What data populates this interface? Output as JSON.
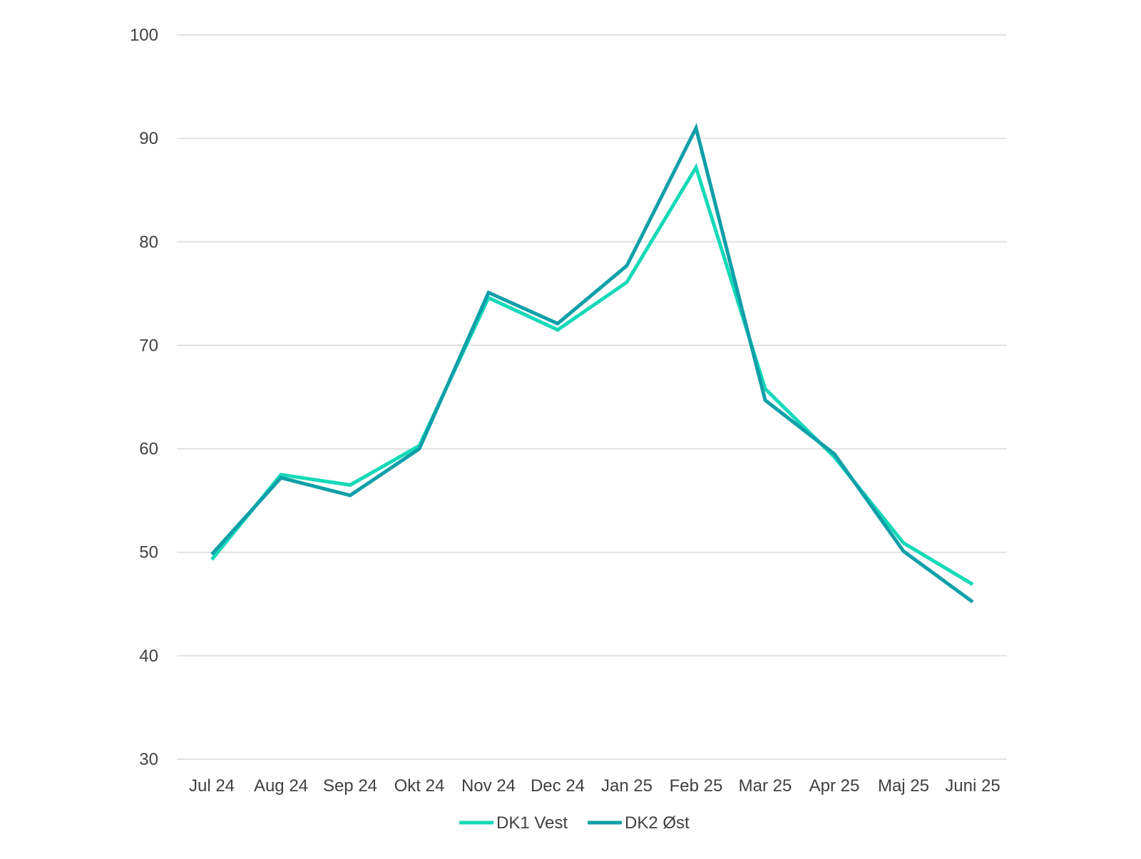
{
  "chart_data": {
    "type": "line",
    "title": "",
    "xlabel": "",
    "ylabel": "",
    "categories": [
      "Jul 24",
      "Aug 24",
      "Sep 24",
      "Okt 24",
      "Nov 24",
      "Dec 24",
      "Jan 25",
      "Feb 25",
      "Mar 25",
      "Apr 25",
      "Maj 25",
      "Juni 25"
    ],
    "ylim": [
      30,
      100
    ],
    "yticks": [
      30,
      40,
      50,
      60,
      70,
      80,
      90,
      100
    ],
    "grid": true,
    "legend_position": "bottom",
    "series": [
      {
        "name": "DK1 Vest",
        "color": "#14d9b8",
        "values": [
          49.3,
          57.5,
          56.5,
          60.3,
          74.6,
          71.5,
          76.1,
          87.2,
          65.8,
          59.2,
          50.9,
          46.9
        ]
      },
      {
        "name": "DK2 Øst",
        "color": "#0fa0a8",
        "values": [
          49.8,
          57.2,
          55.5,
          60.0,
          75.1,
          72.1,
          77.7,
          91.0,
          64.7,
          59.5,
          50.1,
          45.2
        ]
      }
    ]
  }
}
